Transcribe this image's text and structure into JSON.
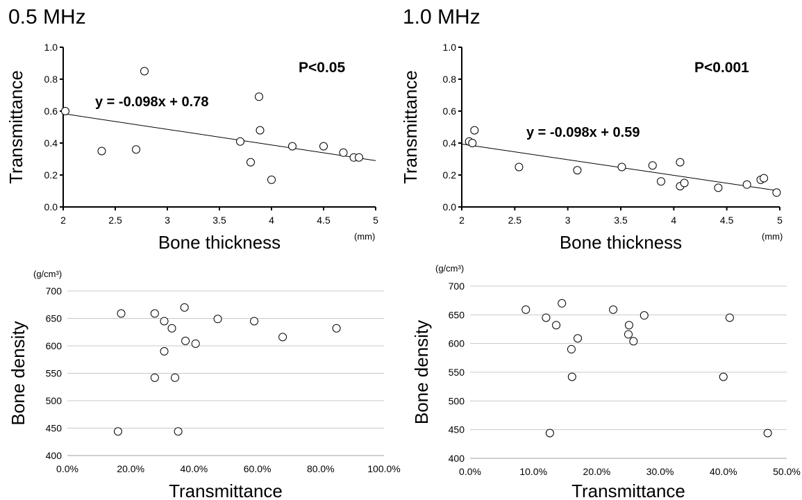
{
  "panel_titles": [
    "0.5 MHz",
    "1.0 MHz"
  ],
  "chart_data": [
    {
      "type": "scatter",
      "title": "0.5 MHz",
      "xlabel": "Bone thickness",
      "x_unit": "(mm)",
      "ylabel": "Transmittance",
      "xlim": [
        2,
        5
      ],
      "ylim": [
        0,
        1
      ],
      "xticks": [
        "2",
        "2.5",
        "3",
        "3.5",
        "4",
        "4.5",
        "5"
      ],
      "yticks": [
        "0.0",
        "0.2",
        "0.4",
        "0.6",
        "0.8",
        "1.0"
      ],
      "grid": false,
      "x": [
        2.02,
        2.37,
        2.7,
        2.78,
        3.7,
        3.8,
        3.88,
        3.89,
        4.0,
        4.2,
        4.5,
        4.69,
        4.79,
        4.84
      ],
      "y": [
        0.6,
        0.35,
        0.36,
        0.85,
        0.41,
        0.28,
        0.69,
        0.48,
        0.17,
        0.38,
        0.38,
        0.34,
        0.31,
        0.31
      ],
      "trendline": {
        "slope": -0.098,
        "intercept": 0.78
      },
      "annotations": [
        "y = -0.098x + 0.78",
        "P<0.05"
      ]
    },
    {
      "type": "scatter",
      "title": "1.0 MHz",
      "xlabel": "Bone thickness",
      "x_unit": "(mm)",
      "ylabel": "Transmittance",
      "xlim": [
        2,
        5
      ],
      "ylim": [
        0,
        1
      ],
      "xticks": [
        "2",
        "2.5",
        "3",
        "3.5",
        "4",
        "4.5",
        "5"
      ],
      "yticks": [
        "0.0",
        "0.2",
        "0.4",
        "0.6",
        "0.8",
        "1.0"
      ],
      "grid": false,
      "x": [
        2.07,
        2.1,
        2.12,
        2.54,
        3.09,
        3.51,
        3.8,
        3.88,
        4.06,
        4.06,
        4.1,
        4.42,
        4.69,
        4.82,
        4.85,
        4.97
      ],
      "y": [
        0.41,
        0.4,
        0.48,
        0.25,
        0.23,
        0.25,
        0.26,
        0.16,
        0.28,
        0.13,
        0.15,
        0.12,
        0.14,
        0.17,
        0.18,
        0.09
      ],
      "trendline": {
        "slope": -0.098,
        "intercept": 0.59
      },
      "annotations": [
        "y = -0.098x + 0.59",
        "P<0.001"
      ]
    },
    {
      "type": "scatter",
      "xlabel": "Transmittance",
      "ylabel": "Bone density",
      "y_unit": "(g/cm³)",
      "xlim": [
        0,
        1
      ],
      "ylim": [
        400,
        700
      ],
      "xticks": [
        "0.0%",
        "20.0%",
        "40.0%",
        "60.0%",
        "80.0%",
        "100.0%"
      ],
      "yticks": [
        "400",
        "450",
        "500",
        "550",
        "600",
        "650",
        "700"
      ],
      "grid": true,
      "x": [
        0.16,
        0.17,
        0.276,
        0.276,
        0.306,
        0.306,
        0.33,
        0.34,
        0.35,
        0.37,
        0.373,
        0.405,
        0.475,
        0.59,
        0.68,
        0.85
      ],
      "y": [
        444,
        659,
        659,
        542,
        645,
        590,
        632,
        542,
        444,
        670,
        609,
        604,
        649,
        645,
        616,
        632
      ]
    },
    {
      "type": "scatter",
      "xlabel": "Transmittance",
      "ylabel": "Bone density",
      "y_unit": "(g/cm³)",
      "xlim": [
        0,
        0.5
      ],
      "ylim": [
        400,
        700
      ],
      "xticks": [
        "0.0%",
        "10.0%",
        "20.0%",
        "30.0%",
        "40.0%",
        "50.0%"
      ],
      "yticks": [
        "400",
        "450",
        "500",
        "550",
        "600",
        "650",
        "700"
      ],
      "grid": true,
      "x": [
        0.088,
        0.12,
        0.126,
        0.136,
        0.145,
        0.16,
        0.161,
        0.17,
        0.226,
        0.25,
        0.251,
        0.258,
        0.275,
        0.4,
        0.41,
        0.47
      ],
      "y": [
        659,
        645,
        444,
        632,
        670,
        590,
        542,
        609,
        659,
        616,
        632,
        604,
        649,
        542,
        645,
        444
      ]
    }
  ]
}
